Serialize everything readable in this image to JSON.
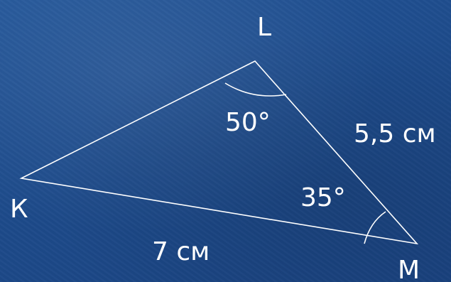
{
  "diagram": {
    "vertices": {
      "K": "К",
      "L": "L",
      "M": "M"
    },
    "angles": {
      "L": "50°",
      "M": "35°"
    },
    "sides": {
      "LM": "5,5 см",
      "KM": "7 см"
    },
    "colors": {
      "background": "#1f4d8e",
      "lines": "#ffffff",
      "text": "#ffffff"
    }
  }
}
